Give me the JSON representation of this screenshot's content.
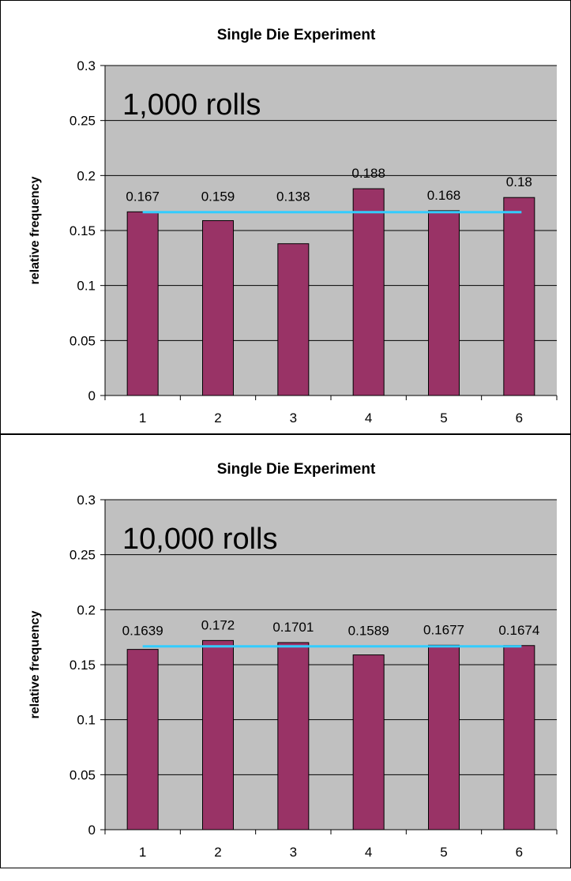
{
  "chart_data": [
    {
      "type": "bar",
      "title": "Single Die Experiment",
      "annotation": "1,000 rolls",
      "ylabel": "relative frequency",
      "xlabel": "",
      "categories": [
        "1",
        "2",
        "3",
        "4",
        "5",
        "6"
      ],
      "values": [
        0.167,
        0.159,
        0.138,
        0.188,
        0.168,
        0.18
      ],
      "data_labels": [
        "0.167",
        "0.159",
        "0.138",
        "0.188",
        "0.168",
        "0.18"
      ],
      "ylim": [
        0,
        0.3
      ],
      "yticks": [
        0,
        0.05,
        0.1,
        0.15,
        0.2,
        0.25,
        0.3
      ],
      "ytick_labels": [
        "0",
        "0.05",
        "0.1",
        "0.15",
        "0.2",
        "0.25",
        "0.3"
      ],
      "reference_line": 0.1667,
      "grid": true,
      "legend": "none",
      "colors": {
        "bar": "#993366",
        "plot_bg": "#c0c0c0",
        "reference_line": "#33ccff"
      }
    },
    {
      "type": "bar",
      "title": "Single Die Experiment",
      "annotation": "10,000 rolls",
      "ylabel": "relative frequency",
      "xlabel": "",
      "categories": [
        "1",
        "2",
        "3",
        "4",
        "5",
        "6"
      ],
      "values": [
        0.1639,
        0.172,
        0.1701,
        0.1589,
        0.1677,
        0.1674
      ],
      "data_labels": [
        "0.1639",
        "0.172",
        "0.1701",
        "0.1589",
        "0.1677",
        "0.1674"
      ],
      "ylim": [
        0,
        0.3
      ],
      "yticks": [
        0,
        0.05,
        0.1,
        0.15,
        0.2,
        0.25,
        0.3
      ],
      "ytick_labels": [
        "0",
        "0.05",
        "0.1",
        "0.15",
        "0.2",
        "0.25",
        "0.3"
      ],
      "reference_line": 0.1667,
      "grid": true,
      "legend": "none",
      "colors": {
        "bar": "#993366",
        "plot_bg": "#c0c0c0",
        "reference_line": "#33ccff"
      }
    }
  ]
}
